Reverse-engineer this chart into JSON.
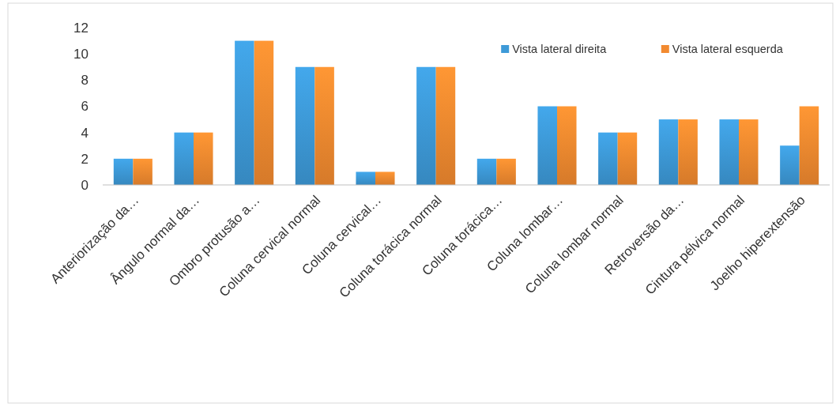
{
  "chart_data": {
    "type": "bar",
    "categories": [
      "Anteriorização da…",
      "Ângulo normal da…",
      "Ombro protusão a…",
      "Coluna cervical normal",
      "Coluna cervical…",
      "Coluna torácica normal",
      "Coluna torácica…",
      "Coluna lombar…",
      "Coluna lombar normal",
      "Retroversão da…",
      "Cintura pélvica normal",
      "Joelho hiperextensão"
    ],
    "series": [
      {
        "name": "Vista lateral direita",
        "color": "#3d9ad8",
        "values": [
          2,
          4,
          11,
          9,
          1,
          9,
          2,
          6,
          4,
          5,
          5,
          3
        ]
      },
      {
        "name": "Vista lateral esquerda",
        "color": "#f28a30",
        "values": [
          2,
          4,
          11,
          9,
          1,
          9,
          2,
          6,
          4,
          5,
          5,
          6
        ]
      }
    ],
    "ylim": [
      0,
      12
    ],
    "yticks": [
      0,
      2,
      4,
      6,
      8,
      10,
      12
    ],
    "grid": false,
    "legend": "top right"
  }
}
